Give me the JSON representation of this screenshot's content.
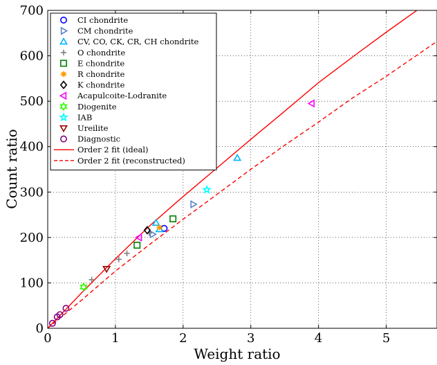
{
  "chart_data": {
    "type": "scatter",
    "xlabel": "Weight ratio",
    "ylabel": "Count ratio",
    "xlim": [
      0,
      5.75
    ],
    "ylim": [
      0,
      700
    ],
    "xticks": [
      0,
      1,
      2,
      3,
      4,
      5
    ],
    "yticks": [
      0,
      100,
      200,
      300,
      400,
      500,
      600,
      700
    ],
    "grid": true,
    "legend_position": "top-left",
    "series": [
      {
        "name": "CI chondrite",
        "marker": "circle",
        "color": "#0000ff",
        "points": [
          [
            1.72,
            220
          ]
        ]
      },
      {
        "name": "CM chondrite",
        "marker": "triangle-right",
        "color": "#5a82c8",
        "points": [
          [
            2.15,
            273
          ],
          [
            1.55,
            207
          ]
        ]
      },
      {
        "name": "CV, CO, CK, CR, CH chondrite",
        "marker": "triangle-up",
        "color": "#00b4ff",
        "points": [
          [
            2.8,
            375
          ],
          [
            1.6,
            232
          ],
          [
            1.65,
            218
          ]
        ]
      },
      {
        "name": "O chondrite",
        "marker": "plus",
        "color": "#808080",
        "points": [
          [
            1.05,
            152
          ],
          [
            1.17,
            165
          ],
          [
            1.5,
            210
          ],
          [
            0.65,
            107
          ]
        ]
      },
      {
        "name": "E chondrite",
        "marker": "square",
        "color": "#008000",
        "points": [
          [
            1.85,
            241
          ],
          [
            1.32,
            183
          ]
        ]
      },
      {
        "name": "R chondrite",
        "marker": "asterisk",
        "color": "#ff9900",
        "points": [
          [
            1.65,
            222
          ]
        ]
      },
      {
        "name": "K chondrite",
        "marker": "diamond",
        "color": "#000000",
        "points": [
          [
            1.47,
            216
          ]
        ]
      },
      {
        "name": "Acapulcoite-Lodranite",
        "marker": "triangle-left",
        "color": "#ff00ff",
        "points": [
          [
            3.9,
            495
          ],
          [
            1.35,
            200
          ]
        ]
      },
      {
        "name": "Diogenite",
        "marker": "hexagram",
        "color": "#33ff00",
        "points": [
          [
            0.53,
            91
          ]
        ]
      },
      {
        "name": "IAB",
        "marker": "pentagram",
        "color": "#00ffff",
        "points": [
          [
            2.35,
            305
          ]
        ]
      },
      {
        "name": "Ureilite",
        "marker": "triangle-down",
        "color": "#990000",
        "points": [
          [
            0.87,
            131
          ]
        ]
      },
      {
        "name": "Diagnostic",
        "marker": "circle",
        "color": "#800080",
        "points": [
          [
            0.07,
            11
          ],
          [
            0.14,
            25
          ],
          [
            0.18,
            30
          ],
          [
            0.27,
            44
          ]
        ]
      }
    ],
    "fits": [
      {
        "name": "Order 2 fit (ideal)",
        "style": "solid",
        "color": "#ff0000",
        "x": [
          0,
          0.5,
          1,
          1.5,
          2,
          2.5,
          3,
          3.5,
          4,
          4.5,
          5,
          5.5,
          5.75
        ],
        "y": [
          0,
          78,
          153,
          225,
          290,
          353,
          416,
          478,
          541,
          597,
          652,
          705,
          731
        ]
      },
      {
        "name": "Order 2 fit (reconstructed)",
        "style": "dashed",
        "color": "#ff0000",
        "x": [
          0,
          0.5,
          1,
          1.5,
          2,
          2.5,
          3,
          3.5,
          4,
          4.5,
          5,
          5.5,
          5.75
        ],
        "y": [
          0,
          62,
          126,
          184,
          240,
          295,
          350,
          403,
          454,
          507,
          555,
          606,
          632
        ]
      }
    ]
  }
}
